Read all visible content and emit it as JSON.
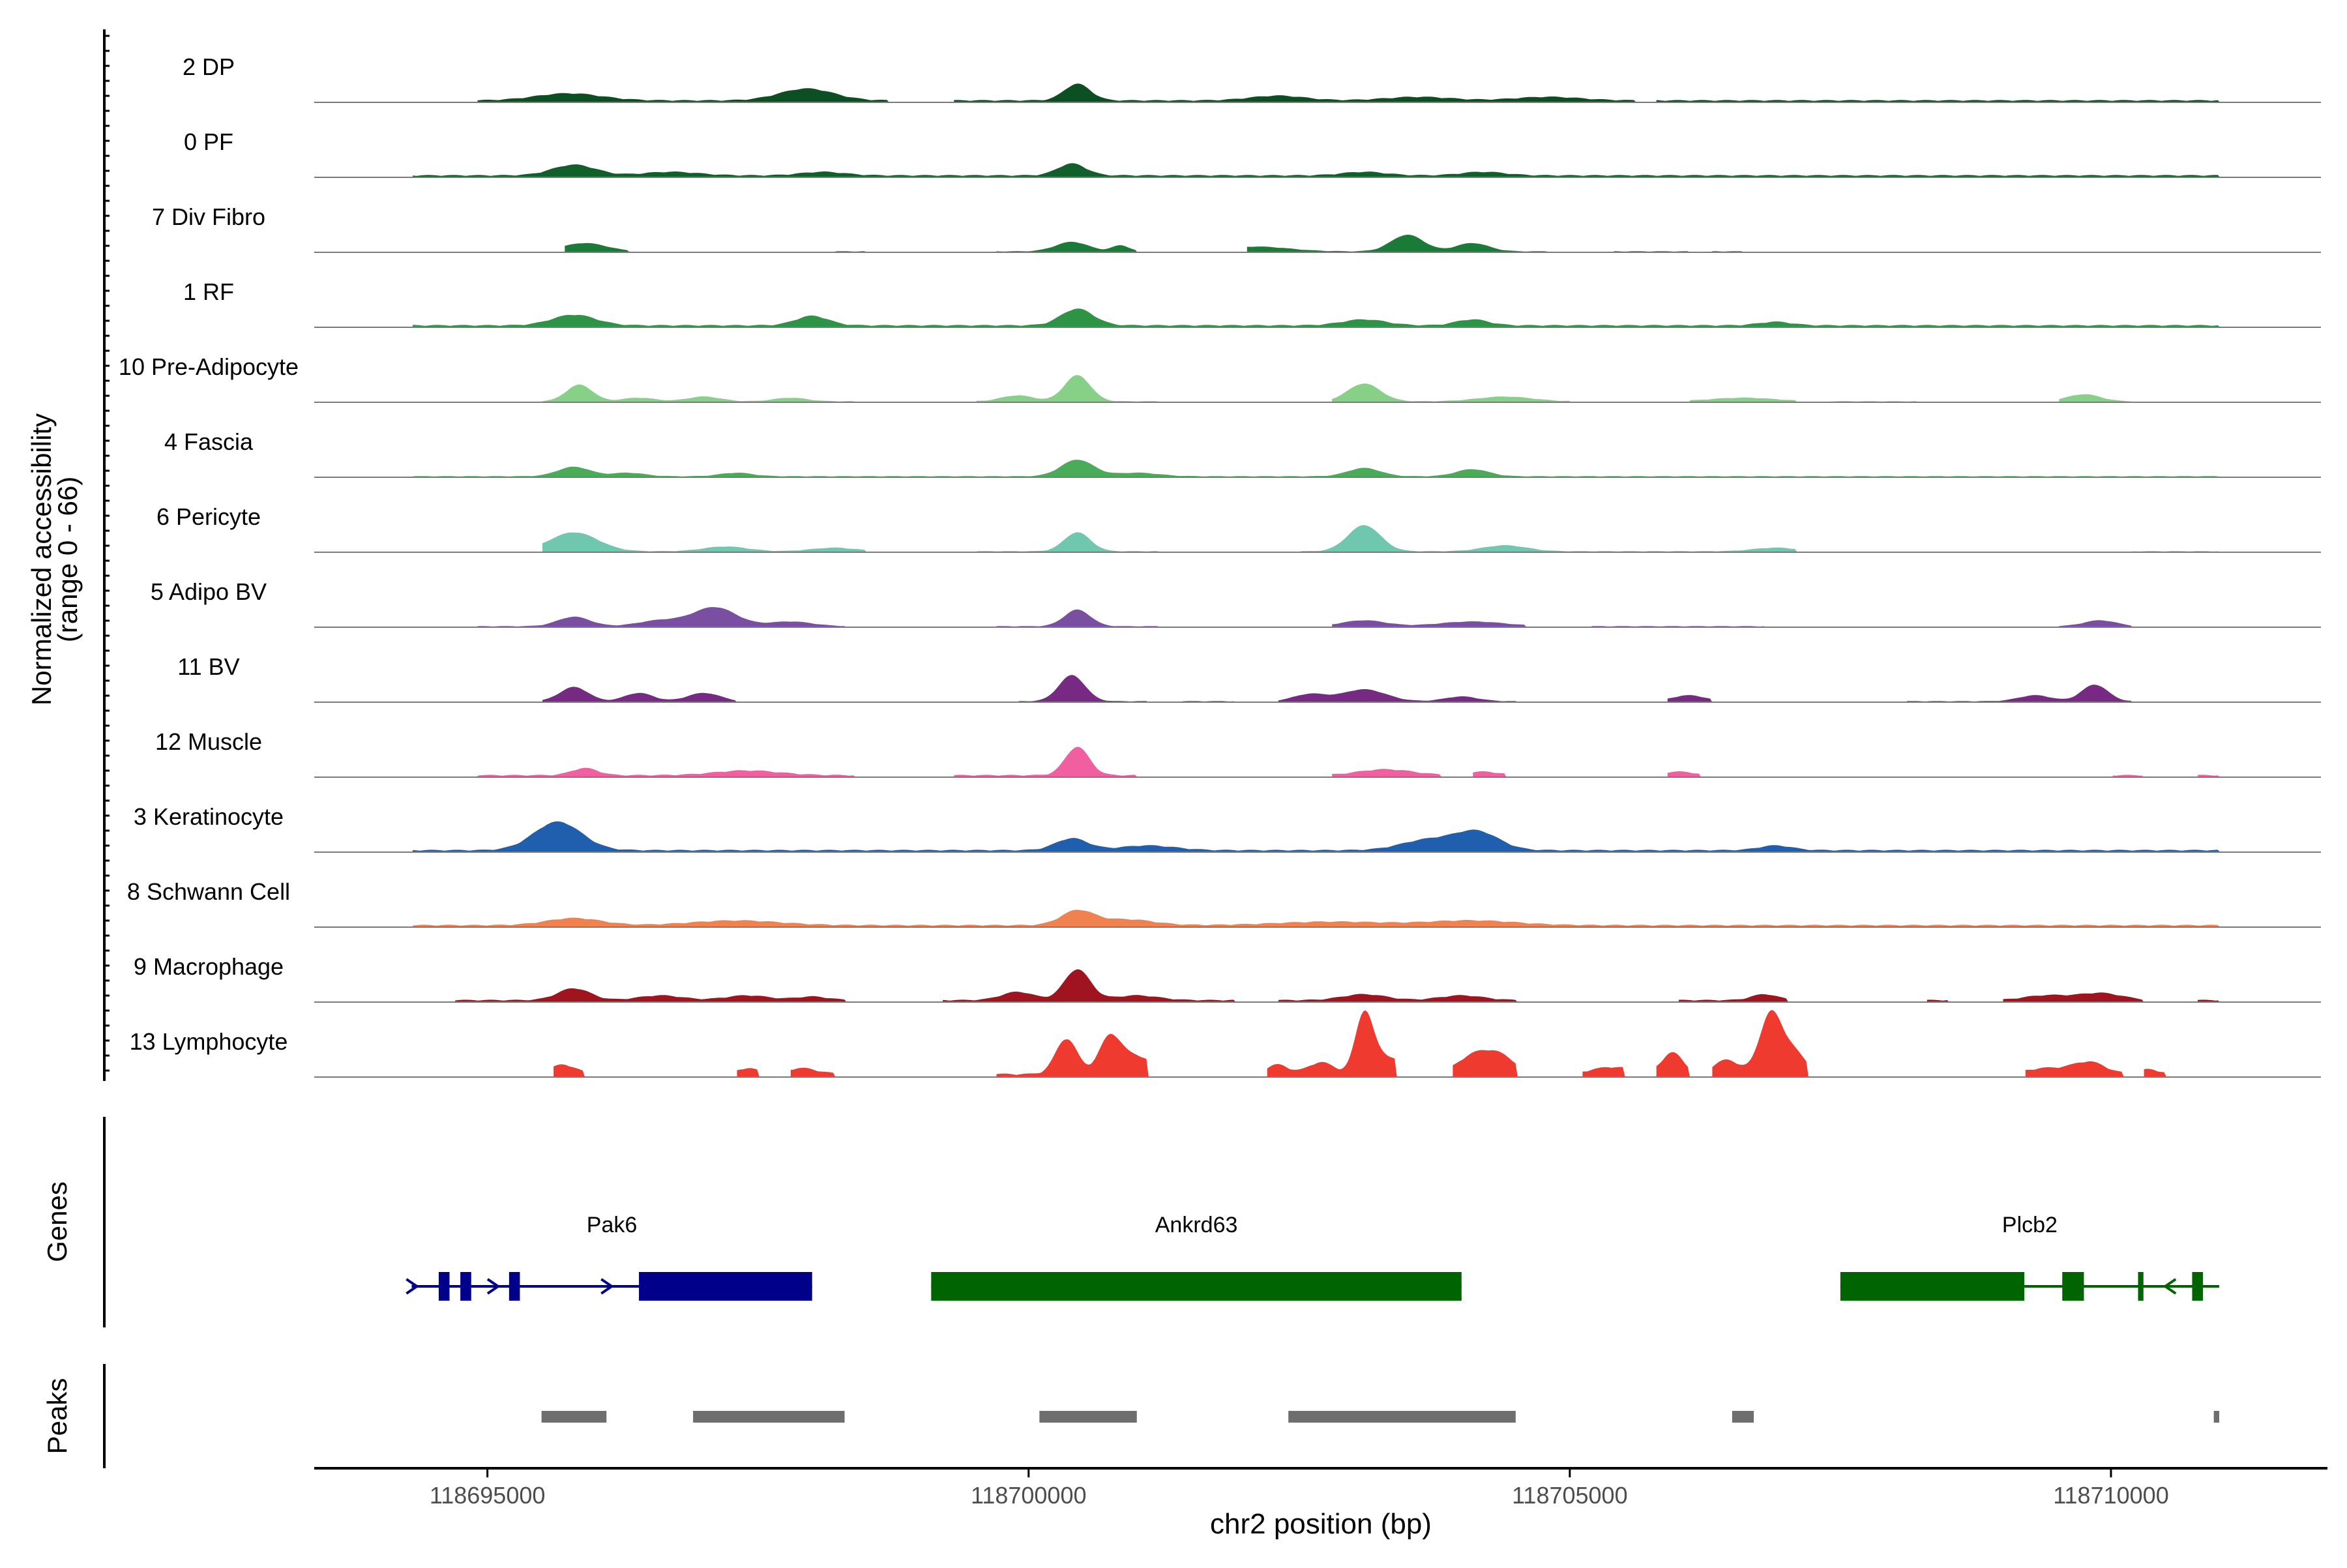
{
  "chart_data": {
    "type": "area",
    "chromosome": "chr2",
    "xlabel": "chr2 position (bp)",
    "xlim": [
      118693400,
      118712000
    ],
    "x_ticks": [
      118695000,
      118700000,
      118705000,
      118710000
    ],
    "x_tick_labels": [
      "118695000",
      "118700000",
      "118705000",
      "118710000"
    ],
    "ylabel_line1": "Normalized accessibility",
    "ylabel_line2": "(range 0 - 66)",
    "y_range": [
      0,
      66
    ],
    "tracks": [
      {
        "name": "2 DP",
        "color": "#0b4f22",
        "base": 2,
        "peaks": [
          [
            118695750,
            6,
            300
          ],
          [
            118697950,
            10,
            250
          ],
          [
            118700450,
            14,
            120
          ],
          [
            118702300,
            4,
            250
          ],
          [
            118703600,
            3,
            300
          ],
          [
            118704800,
            3,
            300
          ]
        ],
        "spans": [
          [
            118694900,
            118698700
          ],
          [
            118699300,
            118705600
          ],
          [
            118705800,
            118711000
          ]
        ]
      },
      {
        "name": "0 PF",
        "color": "#11602c",
        "base": 2,
        "peaks": [
          [
            118695800,
            9,
            200
          ],
          [
            118696700,
            3,
            250
          ],
          [
            118698100,
            3,
            200
          ],
          [
            118700400,
            10,
            130
          ],
          [
            118703100,
            3,
            200
          ],
          [
            118704200,
            3,
            200
          ]
        ],
        "spans": [
          [
            118694300,
            118711000
          ]
        ]
      },
      {
        "name": "7 Div Fibro",
        "color": "#1a7a38",
        "base": 1,
        "peaks": [
          [
            118695900,
            7,
            200
          ],
          [
            118697100,
            2,
            200
          ],
          [
            118700400,
            8,
            150
          ],
          [
            118700850,
            5,
            80
          ],
          [
            118702100,
            4,
            300
          ],
          [
            118703500,
            14,
            150
          ],
          [
            118704100,
            7,
            150
          ]
        ],
        "spans": [
          [
            118695700,
            118696300
          ],
          [
            118698200,
            118698500
          ],
          [
            118699700,
            118701000
          ],
          [
            118702000,
            118704800
          ],
          [
            118705400,
            118706100
          ],
          [
            118706300,
            118706600
          ]
        ]
      },
      {
        "name": "1 RF",
        "color": "#2e9445",
        "base": 2,
        "peaks": [
          [
            118695800,
            9,
            200
          ],
          [
            118698000,
            8,
            150
          ],
          [
            118700450,
            14,
            150
          ],
          [
            118703100,
            5,
            200
          ],
          [
            118704100,
            5,
            150
          ],
          [
            118706900,
            3,
            150
          ]
        ],
        "spans": [
          [
            118694300,
            118711000
          ]
        ]
      },
      {
        "name": "10 Pre-Adipocyte",
        "color": "#86d187",
        "base": 1,
        "peaks": [
          [
            118695850,
            14,
            120
          ],
          [
            118696400,
            3,
            150
          ],
          [
            118697000,
            4,
            150
          ],
          [
            118697800,
            3,
            150
          ],
          [
            118699900,
            5,
            150
          ],
          [
            118700450,
            22,
            120
          ],
          [
            118703100,
            15,
            150
          ],
          [
            118704400,
            4,
            250
          ],
          [
            118706600,
            3,
            300
          ],
          [
            118709750,
            6,
            150
          ]
        ],
        "spans": [
          [
            118695500,
            118698400
          ],
          [
            118699500,
            118701200
          ],
          [
            118702800,
            118705000
          ],
          [
            118706100,
            118707100
          ],
          [
            118707400,
            118708200
          ],
          [
            118709500,
            118710200
          ]
        ]
      },
      {
        "name": "4 Fascia",
        "color": "#4aab58",
        "base": 1,
        "peaks": [
          [
            118695800,
            8,
            150
          ],
          [
            118696300,
            3,
            150
          ],
          [
            118697300,
            3,
            150
          ],
          [
            118700450,
            14,
            150
          ],
          [
            118701000,
            3,
            200
          ],
          [
            118703100,
            7,
            150
          ],
          [
            118704100,
            6,
            150
          ]
        ],
        "spans": [
          [
            118694300,
            118711000
          ]
        ]
      },
      {
        "name": "6 Pericyte",
        "color": "#6ec7ae",
        "base": 1,
        "peaks": [
          [
            118695800,
            16,
            220
          ],
          [
            118697200,
            4,
            200
          ],
          [
            118698200,
            3,
            200
          ],
          [
            118700450,
            16,
            120
          ],
          [
            118703100,
            22,
            150
          ],
          [
            118704400,
            5,
            200
          ],
          [
            118706900,
            3,
            200
          ]
        ],
        "spans": [
          [
            118695500,
            118698500
          ],
          [
            118699500,
            118701200
          ],
          [
            118702500,
            118707100
          ],
          [
            118710200,
            118711000
          ]
        ]
      },
      {
        "name": "5 Adipo BV",
        "color": "#7a4fa1",
        "base": 1,
        "peaks": [
          [
            118695800,
            8,
            150
          ],
          [
            118696600,
            5,
            200
          ],
          [
            118697100,
            16,
            200
          ],
          [
            118697800,
            4,
            200
          ],
          [
            118700450,
            14,
            120
          ],
          [
            118703100,
            5,
            200
          ],
          [
            118704100,
            4,
            300
          ],
          [
            118709900,
            5,
            150
          ]
        ],
        "spans": [
          [
            118694900,
            118698300
          ],
          [
            118699700,
            118701200
          ],
          [
            118702800,
            118704600
          ],
          [
            118705200,
            118706800
          ],
          [
            118709500,
            118710200
          ]
        ]
      },
      {
        "name": "11 BV",
        "color": "#762a83",
        "base": 1,
        "peaks": [
          [
            118695800,
            12,
            130
          ],
          [
            118696400,
            7,
            130
          ],
          [
            118697000,
            7,
            150
          ],
          [
            118700400,
            22,
            120
          ],
          [
            118702600,
            6,
            150
          ],
          [
            118703100,
            10,
            200
          ],
          [
            118704000,
            4,
            150
          ],
          [
            118706100,
            5,
            150
          ],
          [
            118709300,
            5,
            150
          ],
          [
            118709850,
            14,
            120
          ]
        ],
        "spans": [
          [
            118695500,
            118697300
          ],
          [
            118699900,
            118701100
          ],
          [
            118701400,
            118701900
          ],
          [
            118702300,
            118704500
          ],
          [
            118705900,
            118706300
          ],
          [
            118708100,
            118710200
          ]
        ]
      },
      {
        "name": "12 Muscle",
        "color": "#f060a0",
        "base": 2,
        "peaks": [
          [
            118695900,
            6,
            120
          ],
          [
            118697400,
            4,
            300
          ],
          [
            118700450,
            24,
            110
          ],
          [
            118703300,
            5,
            250
          ],
          [
            118704200,
            3,
            150
          ],
          [
            118706000,
            3,
            150
          ]
        ],
        "spans": [
          [
            118694900,
            118698400
          ],
          [
            118699300,
            118701000
          ],
          [
            118702800,
            118703800
          ],
          [
            118704100,
            118704400
          ],
          [
            118705900,
            118706200
          ],
          [
            118710000,
            118710300
          ],
          [
            118710800,
            118711000
          ]
        ]
      },
      {
        "name": "3 Keratinocyte",
        "color": "#1f5fad",
        "base": 2,
        "peaks": [
          [
            118695650,
            24,
            220
          ],
          [
            118700400,
            10,
            150
          ],
          [
            118701100,
            4,
            250
          ],
          [
            118703700,
            9,
            250
          ],
          [
            118704150,
            15,
            200
          ],
          [
            118706900,
            4,
            150
          ]
        ],
        "spans": [
          [
            118694300,
            118711000
          ]
        ]
      },
      {
        "name": "8 Schwann Cell",
        "color": "#f08250",
        "base": 2,
        "peaks": [
          [
            118695800,
            6,
            250
          ],
          [
            118697300,
            4,
            400
          ],
          [
            118700450,
            12,
            150
          ],
          [
            118700900,
            5,
            250
          ],
          [
            118702800,
            3,
            500
          ],
          [
            118704100,
            4,
            400
          ]
        ],
        "spans": [
          [
            118694300,
            118711000
          ]
        ]
      },
      {
        "name": "9 Macrophage",
        "color": "#a01420",
        "base": 2,
        "peaks": [
          [
            118695800,
            10,
            150
          ],
          [
            118696600,
            4,
            200
          ],
          [
            118697400,
            4,
            200
          ],
          [
            118698000,
            3,
            150
          ],
          [
            118699900,
            7,
            150
          ],
          [
            118700450,
            26,
            120
          ],
          [
            118701000,
            4,
            200
          ],
          [
            118703100,
            5,
            200
          ],
          [
            118704000,
            4,
            200
          ],
          [
            118706800,
            5,
            120
          ],
          [
            118709400,
            4,
            200
          ],
          [
            118709900,
            6,
            200
          ]
        ],
        "spans": [
          [
            118694700,
            118698300
          ],
          [
            118699200,
            118701900
          ],
          [
            118702300,
            118704500
          ],
          [
            118706000,
            118707000
          ],
          [
            118708300,
            118708500
          ],
          [
            118709000,
            118710300
          ],
          [
            118710800,
            118711000
          ]
        ]
      },
      {
        "name": "13 Lymphocyte",
        "color": "#ee3a2f",
        "base": 3,
        "peaks": [
          [
            118695700,
            8,
            120
          ],
          [
            118697400,
            5,
            100
          ],
          [
            118697900,
            5,
            150
          ],
          [
            118700350,
            30,
            100
          ],
          [
            118700750,
            30,
            100
          ],
          [
            118701000,
            15,
            150
          ],
          [
            118702300,
            8,
            100
          ],
          [
            118702700,
            10,
            120
          ],
          [
            118703100,
            48,
            80
          ],
          [
            118703300,
            15,
            150
          ],
          [
            118704100,
            14,
            150
          ],
          [
            118704350,
            15,
            150
          ],
          [
            118705400,
            6,
            200
          ],
          [
            118705950,
            18,
            100
          ],
          [
            118706450,
            12,
            120
          ],
          [
            118706850,
            48,
            100
          ],
          [
            118707050,
            20,
            120
          ],
          [
            118709400,
            5,
            200
          ],
          [
            118709800,
            10,
            150
          ],
          [
            118710350,
            4,
            100
          ]
        ],
        "spans": [
          [
            118695600,
            118695900
          ],
          [
            118697300,
            118697500
          ],
          [
            118697800,
            118698200
          ],
          [
            118699700,
            118701100
          ],
          [
            118702200,
            118703400
          ],
          [
            118703900,
            118704500
          ],
          [
            118705100,
            118705500
          ],
          [
            118705800,
            118706100
          ],
          [
            118706300,
            118707200
          ],
          [
            118709200,
            118710100
          ],
          [
            118710300,
            118710500
          ]
        ]
      }
    ],
    "genes_label": "Genes",
    "genes": [
      {
        "name": "Pak6",
        "strand": "+",
        "color": "#00008b",
        "start": 118694300,
        "end": 118698000,
        "exons": [
          [
            118694550,
            118694650
          ],
          [
            118694750,
            118694850
          ],
          [
            118695200,
            118695300
          ],
          [
            118696400,
            118698000
          ]
        ],
        "arrows": [
          118694300,
          118695050,
          118696100
        ]
      },
      {
        "name": "Ankrd63",
        "strand": "-",
        "color": "#006400",
        "start": 118699100,
        "end": 118704000,
        "exons": [
          [
            118699100,
            118704000
          ]
        ],
        "arrows": []
      },
      {
        "name": "Plcb2",
        "strand": "-",
        "color": "#006400",
        "start": 118707500,
        "end": 118711000,
        "exons": [
          [
            118707500,
            118709200
          ],
          [
            118709550,
            118709750
          ],
          [
            118710250,
            118710300
          ],
          [
            118710750,
            118710850
          ]
        ],
        "arrows": [
          118710550
        ]
      }
    ],
    "peaks_label": "Peaks",
    "peak_regions": [
      [
        118695500,
        118696100
      ],
      [
        118696900,
        118698300
      ],
      [
        118700100,
        118701000
      ],
      [
        118702400,
        118704500
      ],
      [
        118706500,
        118706700
      ],
      [
        118710950,
        118711000
      ]
    ]
  }
}
